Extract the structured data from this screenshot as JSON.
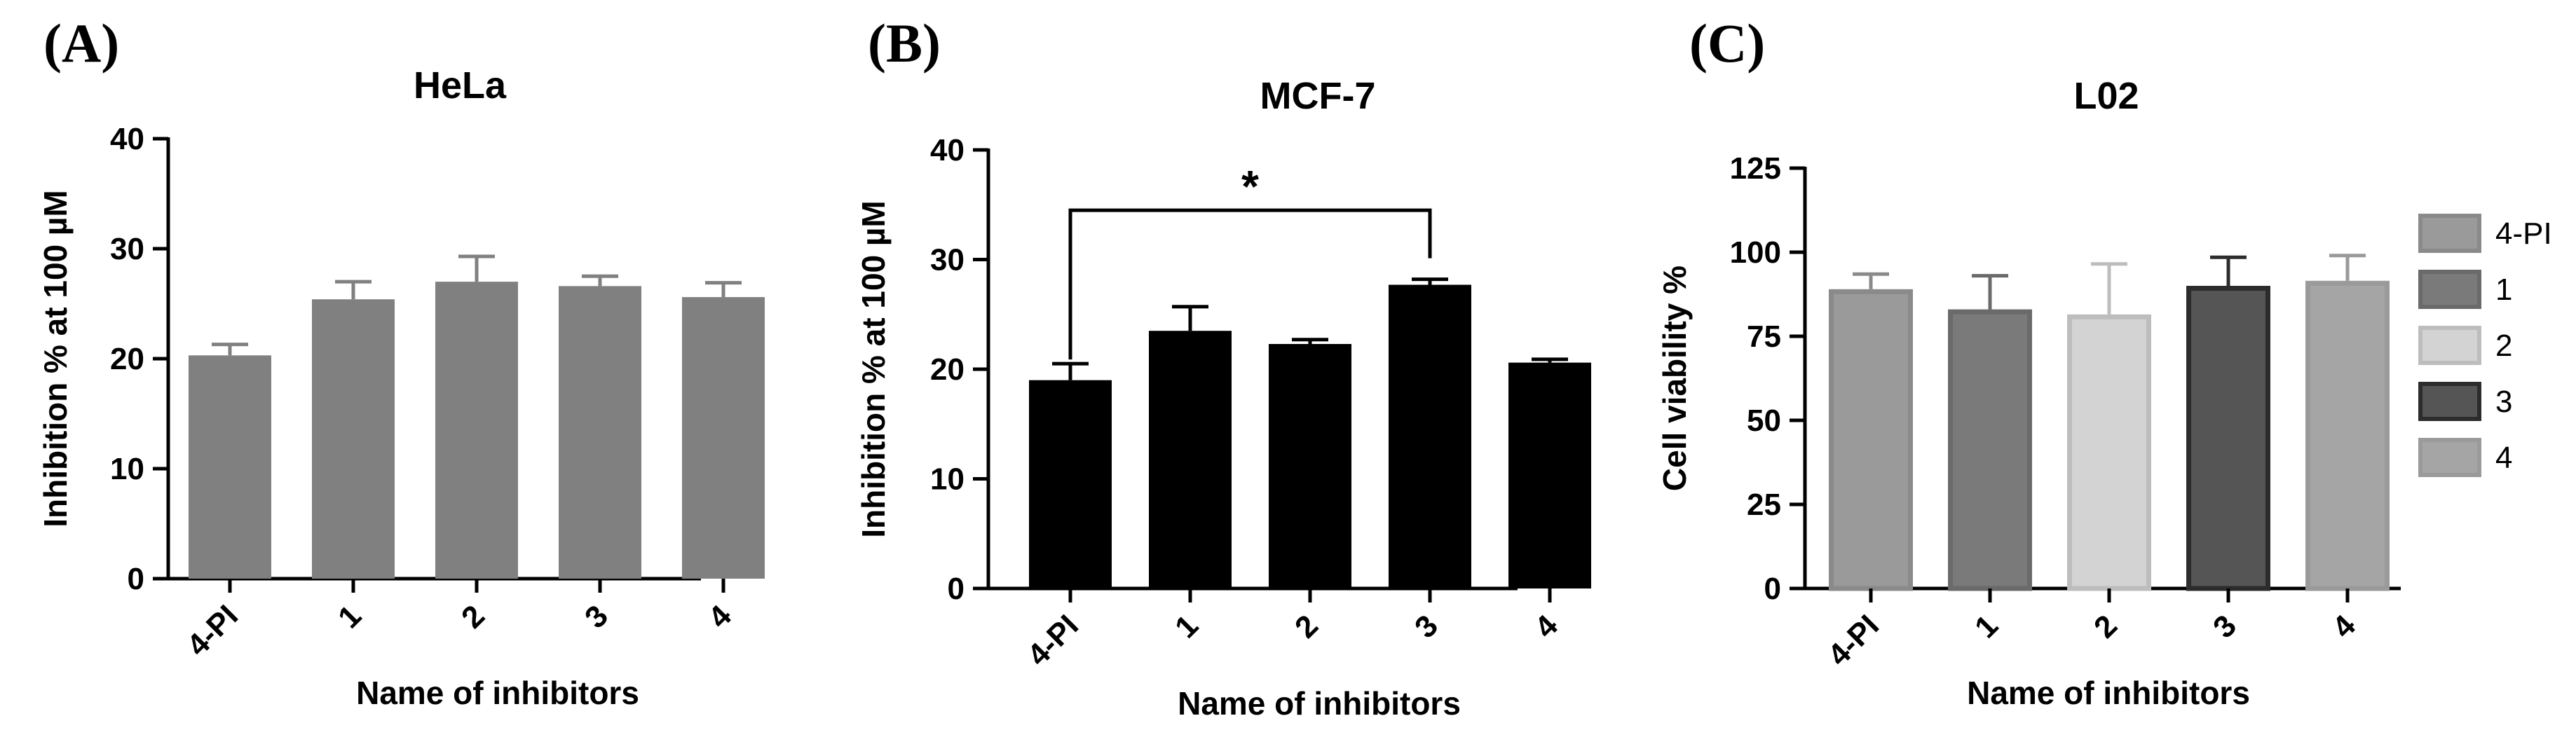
{
  "panels": [
    {
      "letter": "(A)"
    },
    {
      "letter": "(B)"
    },
    {
      "letter": "(C)"
    }
  ],
  "chart_data": [
    {
      "type": "bar",
      "title": "HeLa",
      "xlabel": "Name of inhibitors",
      "ylabel": "Inhibition % at 100 µM",
      "ylim": [
        0,
        40
      ],
      "yticks": [
        0,
        10,
        20,
        30,
        40
      ],
      "categories": [
        "4-PI",
        "1",
        "2",
        "3",
        "4"
      ],
      "values": [
        20.3,
        25.4,
        27.0,
        26.6,
        25.6
      ],
      "errors": [
        1.0,
        1.6,
        2.3,
        0.9,
        1.3
      ],
      "colors": [
        "#808080",
        "#808080",
        "#808080",
        "#808080",
        "#808080"
      ],
      "grid": false,
      "legend": null
    },
    {
      "type": "bar",
      "title": "MCF-7",
      "xlabel": "Name of inhibitors",
      "ylabel": "Inhibition % at 100 µM",
      "ylim": [
        0,
        40
      ],
      "yticks": [
        0,
        10,
        20,
        30,
        40
      ],
      "categories": [
        "4-PI",
        "1",
        "2",
        "3",
        "4"
      ],
      "values": [
        19.0,
        23.5,
        22.3,
        27.7,
        20.6
      ],
      "errors": [
        1.5,
        2.2,
        0.4,
        0.5,
        0.3
      ],
      "colors": [
        "#000000",
        "#000000",
        "#000000",
        "#000000",
        "#000000"
      ],
      "grid": false,
      "legend": null,
      "significance": {
        "from": 0,
        "to": 3,
        "label": "*",
        "level": 34.5
      }
    },
    {
      "type": "bar",
      "title": "L02",
      "xlabel": "Name of inhibitors",
      "ylabel": "Cell viability %",
      "ylim": [
        0,
        125
      ],
      "yticks": [
        0,
        25,
        50,
        75,
        100,
        125
      ],
      "categories": [
        "4-PI",
        "1",
        "2",
        "3",
        "4"
      ],
      "values": [
        89.0,
        83.0,
        81.5,
        90.0,
        91.5
      ],
      "errors": [
        4.5,
        10.0,
        15.0,
        8.5,
        7.5
      ],
      "colors": [
        "#9a9a9a",
        "#7a7a7a",
        "#d3d3d3",
        "#555555",
        "#a5a5a5"
      ],
      "edges": [
        "#8a8a8a",
        "#6a6a6a",
        "#bdbdbd",
        "#2c2c2c",
        "#9a9a9a"
      ],
      "grid": false,
      "legend": {
        "position": "right",
        "entries": [
          "4-PI",
          "1",
          "2",
          "3",
          "4"
        ]
      }
    }
  ]
}
